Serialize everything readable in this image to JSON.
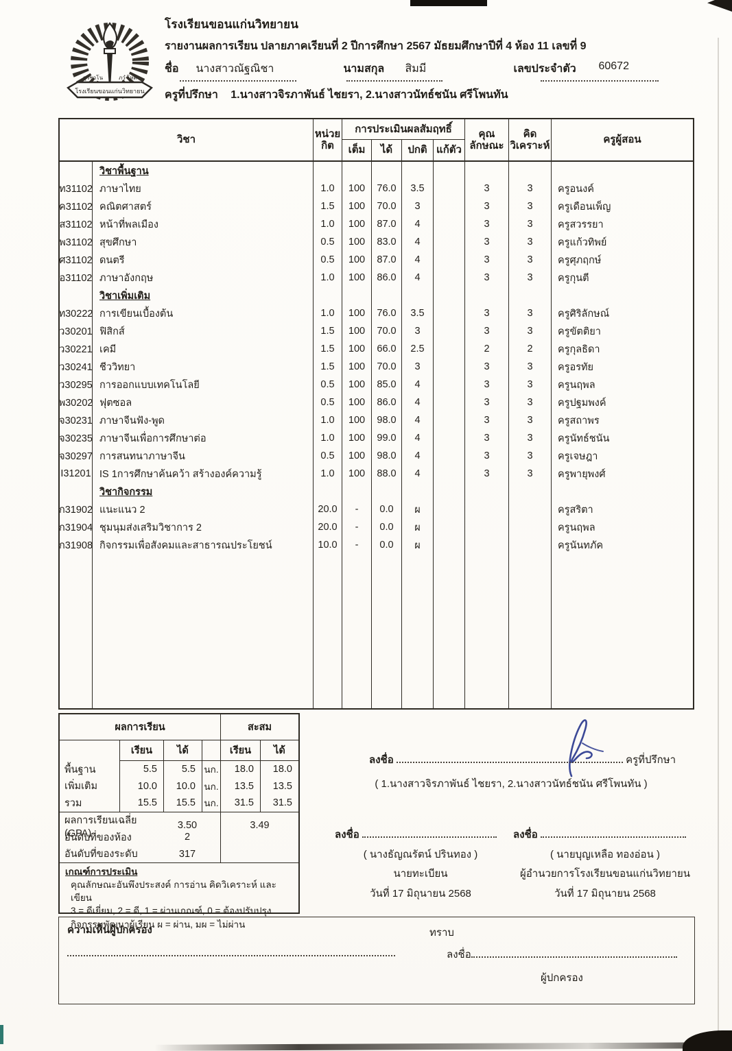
{
  "header": {
    "school_name": "โรงเรียนขอนแก่นวิทยายน",
    "report_line": "รายงานผลการเรียน ปลายภาคเรียนที่ 2 ปีการศึกษา 2567  มัธยมศึกษาปีที่ 4 ห้อง 11 เลขที่ 9",
    "name_label": "ชื่อ",
    "first_name": "นางสาวณัฐณิชา",
    "surname_label": "นามสกุล",
    "surname": "สิมมี",
    "id_label": "เลขประจำตัว",
    "id_value": "60672",
    "advisor_label": "ครูที่ปรึกษา",
    "advisor_value": "1.นางสาวจิรภาพันธ์  ไชยรา, 2.นางสาวนัทธ์ชนัน  ศรีโพนทัน",
    "logo_banner": "โรงเรียนขอนแก่นวิทยายน",
    "logo_motto_left": "สุวิชาโน",
    "logo_motto_right": "ภวํ โหติ"
  },
  "table": {
    "head": {
      "subject": "วิชา",
      "credit1": "หน่วย",
      "credit2": "กิต",
      "assess": "การประเมินผลสัมฤทธิ์",
      "full": "เต็ม",
      "got": "ได้",
      "normal": "ปกติ",
      "retake": "แก้ตัว",
      "quality1": "คุณ",
      "quality2": "ลักษณะ",
      "analysis1": "คิด",
      "analysis2": "วิเคราะห์",
      "teacher": "ครูผู้สอน"
    },
    "rows": [
      {
        "type": "section",
        "name": "วิชาพื้นฐาน"
      },
      {
        "type": "subject",
        "code": "ท31102",
        "name": "ภาษาไทย",
        "credit": "1.0",
        "full": "100",
        "got": "76.0",
        "normal": "3.5",
        "retake": "",
        "quality": "3",
        "analysis": "3",
        "teacher": "ครูอนงค์"
      },
      {
        "type": "subject",
        "code": "ค31102",
        "name": "คณิตศาสตร์",
        "credit": "1.5",
        "full": "100",
        "got": "70.0",
        "normal": "3",
        "retake": "",
        "quality": "3",
        "analysis": "3",
        "teacher": "ครูเดือนเพ็ญ"
      },
      {
        "type": "subject",
        "code": "ส31102",
        "name": "หน้าที่พลเมือง",
        "credit": "1.0",
        "full": "100",
        "got": "87.0",
        "normal": "4",
        "retake": "",
        "quality": "3",
        "analysis": "3",
        "teacher": "ครูสวรรยา"
      },
      {
        "type": "subject",
        "code": "พ31102",
        "name": "สุขศึกษา",
        "credit": "0.5",
        "full": "100",
        "got": "83.0",
        "normal": "4",
        "retake": "",
        "quality": "3",
        "analysis": "3",
        "teacher": "ครูแก้วทิพย์"
      },
      {
        "type": "subject",
        "code": "ศ31102",
        "name": "ดนตรี",
        "credit": "0.5",
        "full": "100",
        "got": "87.0",
        "normal": "4",
        "retake": "",
        "quality": "3",
        "analysis": "3",
        "teacher": "ครูศุภฤกษ์"
      },
      {
        "type": "subject",
        "code": "อ31102",
        "name": "ภาษาอังกฤษ",
        "credit": "1.0",
        "full": "100",
        "got": "86.0",
        "normal": "4",
        "retake": "",
        "quality": "3",
        "analysis": "3",
        "teacher": "ครูกุนตี"
      },
      {
        "type": "section",
        "name": "วิชาเพิ่มเติม"
      },
      {
        "type": "subject",
        "code": "ท30222",
        "name": "การเขียนเบื้องต้น",
        "credit": "1.0",
        "full": "100",
        "got": "76.0",
        "normal": "3.5",
        "retake": "",
        "quality": "3",
        "analysis": "3",
        "teacher": "ครูศิริลักษณ์"
      },
      {
        "type": "subject",
        "code": "ว30201",
        "name": "ฟิสิกส์",
        "credit": "1.5",
        "full": "100",
        "got": "70.0",
        "normal": "3",
        "retake": "",
        "quality": "3",
        "analysis": "3",
        "teacher": "ครูขัตติยา"
      },
      {
        "type": "subject",
        "code": "ว30221",
        "name": "เคมี",
        "credit": "1.5",
        "full": "100",
        "got": "66.0",
        "normal": "2.5",
        "retake": "",
        "quality": "2",
        "analysis": "2",
        "teacher": "ครูกุลธิดา"
      },
      {
        "type": "subject",
        "code": "ว30241",
        "name": "ชีววิทยา",
        "credit": "1.5",
        "full": "100",
        "got": "70.0",
        "normal": "3",
        "retake": "",
        "quality": "3",
        "analysis": "3",
        "teacher": "ครูอรทัย"
      },
      {
        "type": "subject",
        "code": "ว30295",
        "name": "การออกแบบเทคโนโลยี",
        "credit": "0.5",
        "full": "100",
        "got": "85.0",
        "normal": "4",
        "retake": "",
        "quality": "3",
        "analysis": "3",
        "teacher": "ครูนฤพล"
      },
      {
        "type": "subject",
        "code": "พ30202",
        "name": "ฟุตซอล",
        "credit": "0.5",
        "full": "100",
        "got": "86.0",
        "normal": "4",
        "retake": "",
        "quality": "3",
        "analysis": "3",
        "teacher": "ครูปฐมพงค์"
      },
      {
        "type": "subject",
        "code": "จ30231",
        "name": "ภาษาจีนฟัง-พูด",
        "credit": "1.0",
        "full": "100",
        "got": "98.0",
        "normal": "4",
        "retake": "",
        "quality": "3",
        "analysis": "3",
        "teacher": "ครูสถาพร"
      },
      {
        "type": "subject",
        "code": "จ30235",
        "name": "ภาษาจีนเพื่อการศึกษาต่อ",
        "credit": "1.0",
        "full": "100",
        "got": "99.0",
        "normal": "4",
        "retake": "",
        "quality": "3",
        "analysis": "3",
        "teacher": "ครูนัทธ์ชนัน"
      },
      {
        "type": "subject",
        "code": "จ30297",
        "name": "การสนทนาภาษาจีน",
        "credit": "0.5",
        "full": "100",
        "got": "98.0",
        "normal": "4",
        "retake": "",
        "quality": "3",
        "analysis": "3",
        "teacher": "ครูเจษฎา"
      },
      {
        "type": "subject",
        "code": "I31201",
        "name": "IS 1การศึกษาค้นคว้า สร้างองค์ความรู้",
        "credit": "1.0",
        "full": "100",
        "got": "88.0",
        "normal": "4",
        "retake": "",
        "quality": "3",
        "analysis": "3",
        "teacher": "ครูพายุพงศ์"
      },
      {
        "type": "section",
        "name": "วิชากิจกรรม"
      },
      {
        "type": "subject",
        "code": "ก31902",
        "name": "แนะแนว 2",
        "credit": "20.0",
        "full": "-",
        "got": "0.0",
        "normal": "ผ",
        "retake": "",
        "quality": "",
        "analysis": "",
        "teacher": "ครูสริตา"
      },
      {
        "type": "subject",
        "code": "ก31904",
        "name": "ชุมนุมส่งเสริมวิชาการ 2",
        "credit": "20.0",
        "full": "-",
        "got": "0.0",
        "normal": "ผ",
        "retake": "",
        "quality": "",
        "analysis": "",
        "teacher": "ครูนฤพล"
      },
      {
        "type": "subject",
        "code": "ก31908",
        "name": "กิจกรรมเพื่อสังคมและสาธารณประโยชน์",
        "credit": "10.0",
        "full": "-",
        "got": "0.0",
        "normal": "ผ",
        "retake": "",
        "quality": "",
        "analysis": "",
        "teacher": "ครูนันทภัค"
      }
    ]
  },
  "summary": {
    "result_title": "ผลการเรียน",
    "cum_title": "สะสม",
    "learn_label": "เรียน",
    "got_label": "ได้",
    "rows": [
      {
        "label": "พื้นฐาน",
        "learn": "5.5",
        "got": "5.5",
        "unit": "นก.",
        "cum_learn": "18.0",
        "cum_got": "18.0"
      },
      {
        "label": "เพิ่มเติม",
        "learn": "10.0",
        "got": "10.0",
        "unit": "นก.",
        "cum_learn": "13.5",
        "cum_got": "13.5"
      },
      {
        "label": "รวม",
        "learn": "15.5",
        "got": "15.5",
        "unit": "นก.",
        "cum_learn": "31.5",
        "cum_got": "31.5"
      }
    ],
    "gpa_label": "ผลการเรียนเฉลี่ย (GPA)",
    "gpa": "3.50",
    "gpa_cum": "3.49",
    "room_rank_label": "อันดับที่ของห้อง",
    "room_rank": "2",
    "level_rank_label": "อันดับที่ของระดับ",
    "level_rank": "317",
    "criteria_title": "เกณฑ์การประเมิน",
    "criteria_line1": "คุณลักษณะอันพึงประสงค์ การอ่าน คิดวิเคราะห์ และเขียน",
    "criteria_line2": "3 = ดีเยี่ยม, 2 = ดี, 1 = ผ่านเกณฑ์, 0 = ต้องปรับปรุง",
    "criteria_line3": "กิจกรรมพัฒนาผู้เรียน ผ = ผ่าน, มผ = ไม่ผ่าน"
  },
  "signatures": {
    "sign_label": "ลงชื่อ",
    "advisor_role": "ครูที่ปรึกษา",
    "advisor_names": "( 1.นางสาวจิรภาพันธ์  ไชยรา, 2.นางสาวนัทธ์ชนัน  ศรีโพนทัน )",
    "registrar_name": "(  นางธัญณรัตน์  ปรินทอง  )",
    "registrar_role": "นายทะเบียน",
    "registrar_date": "วันที่  17 มิถุนายน 2568",
    "director_name": "(  นายบุญเหลือ  ทองอ่อน  )",
    "director_role": "ผู้อำนวยการโรงเรียนขอนแก่นวิทยายน",
    "director_date": "วันที่  17 มิถุนายน 2568",
    "ink_color": "#2b3a8e"
  },
  "parent_box": {
    "title": "ความเห็นผู้ปกครอง",
    "ack": "ทราบ",
    "sign_label": "ลงชื่อ",
    "role": "ผู้ปกครอง"
  }
}
